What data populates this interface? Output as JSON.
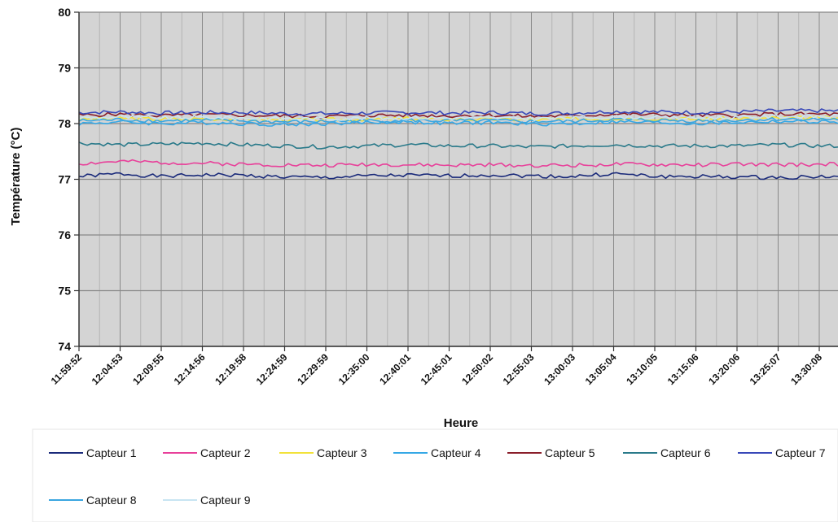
{
  "chart_data": {
    "type": "line",
    "title": "",
    "xlabel": "Heure",
    "ylabel": "Température (°C)",
    "ylim": [
      74,
      80
    ],
    "y_ticks": [
      "74",
      "75",
      "76",
      "77",
      "78",
      "79",
      "80"
    ],
    "grid": true,
    "legend_position": "bottom",
    "categories": [
      "11:59:52",
      "12:04:53",
      "12:09:55",
      "12:14:56",
      "12:19:58",
      "12:24:59",
      "12:29:59",
      "12:35:00",
      "12:40:01",
      "12:45:01",
      "12:50:02",
      "12:55:03",
      "13:00:03",
      "13:05:04",
      "13:10:05",
      "13:15:06",
      "13:20:06",
      "13:25:07",
      "13:30:08"
    ],
    "series": [
      {
        "name": "Capteur 1",
        "color": "#1a2a7a",
        "values": [
          77.05,
          77.1,
          77.05,
          77.08,
          77.07,
          77.04,
          77.03,
          77.06,
          77.07,
          77.06,
          77.08,
          77.06,
          77.05,
          77.1,
          77.05,
          77.05,
          77.04,
          77.03,
          77.05
        ]
      },
      {
        "name": "Capteur 2",
        "color": "#e8409a",
        "values": [
          77.28,
          77.32,
          77.3,
          77.29,
          77.27,
          77.26,
          77.25,
          77.27,
          77.26,
          77.25,
          77.26,
          77.25,
          77.25,
          77.27,
          77.26,
          77.26,
          77.27,
          77.26,
          77.27
        ]
      },
      {
        "name": "Capteur 3",
        "color": "#f2e23a",
        "values": [
          78.08,
          78.1,
          78.08,
          78.09,
          78.08,
          78.07,
          78.07,
          78.08,
          78.09,
          78.08,
          78.08,
          78.07,
          78.08,
          78.1,
          78.09,
          78.08,
          78.09,
          78.1,
          78.1
        ]
      },
      {
        "name": "Capteur 4",
        "color": "#35a8e6",
        "values": [
          78.0,
          78.03,
          78.0,
          78.02,
          78.0,
          77.98,
          78.0,
          78.02,
          78.03,
          78.0,
          78.02,
          77.99,
          78.0,
          78.03,
          78.02,
          78.0,
          78.02,
          78.04,
          78.03
        ]
      },
      {
        "name": "Capteur 5",
        "color": "#8a1e2a",
        "values": [
          78.15,
          78.17,
          78.14,
          78.16,
          78.15,
          78.14,
          78.13,
          78.15,
          78.15,
          78.14,
          78.15,
          78.13,
          78.14,
          78.17,
          78.16,
          78.15,
          78.15,
          78.17,
          78.17
        ]
      },
      {
        "name": "Capteur 6",
        "color": "#2a7a8a",
        "values": [
          77.65,
          77.62,
          77.63,
          77.65,
          77.62,
          77.6,
          77.58,
          77.6,
          77.62,
          77.6,
          77.6,
          77.58,
          77.6,
          77.62,
          77.6,
          77.6,
          77.6,
          77.62,
          77.6
        ]
      },
      {
        "name": "Capteur 7",
        "color": "#3848b8",
        "values": [
          78.2,
          78.21,
          78.19,
          78.2,
          78.2,
          78.18,
          78.18,
          78.19,
          78.2,
          78.19,
          78.2,
          78.18,
          78.19,
          78.22,
          78.21,
          78.2,
          78.21,
          78.23,
          78.23
        ]
      },
      {
        "name": "Capteur 8",
        "color": "#3aa6e0",
        "values": [
          78.05,
          78.07,
          78.05,
          78.06,
          78.05,
          78.03,
          78.04,
          78.05,
          78.06,
          78.05,
          78.05,
          78.04,
          78.04,
          78.07,
          78.06,
          78.05,
          78.06,
          78.08,
          78.08
        ]
      },
      {
        "name": "Capteur 9",
        "color": "#c8e4f2",
        "values": [
          78.1,
          78.12,
          78.1,
          78.11,
          78.1,
          78.09,
          78.09,
          78.1,
          78.11,
          78.1,
          78.1,
          78.09,
          78.1,
          78.12,
          78.11,
          78.1,
          78.11,
          78.13,
          78.13
        ]
      }
    ]
  }
}
